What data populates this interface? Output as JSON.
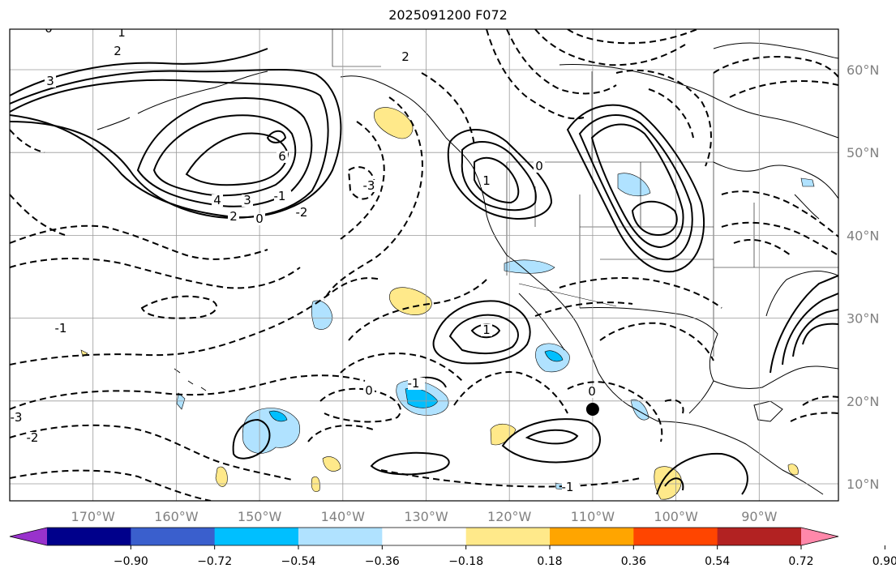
{
  "title": "2025091200 F072",
  "map": {
    "lon_ticks": [
      {
        "value": -170,
        "label": "170°W"
      },
      {
        "value": -160,
        "label": "160°W"
      },
      {
        "value": -150,
        "label": "150°W"
      },
      {
        "value": -140,
        "label": "140°W"
      },
      {
        "value": -130,
        "label": "130°W"
      },
      {
        "value": -120,
        "label": "120°W"
      },
      {
        "value": -110,
        "label": "110°W"
      },
      {
        "value": -100,
        "label": "100°W"
      },
      {
        "value": -90,
        "label": "90°W"
      }
    ],
    "lat_ticks": [
      {
        "value": 60,
        "label": "60°N"
      },
      {
        "value": 50,
        "label": "50°N"
      },
      {
        "value": 40,
        "label": "40°N"
      },
      {
        "value": 30,
        "label": "30°N"
      },
      {
        "value": 20,
        "label": "20°N"
      },
      {
        "value": 10,
        "label": "10°N"
      }
    ],
    "lon_range": [
      -180,
      -80
    ],
    "lat_range": [
      8,
      65
    ],
    "grid": true,
    "contour_labels": [
      "3",
      "2",
      "1",
      "0",
      "-1",
      "-2",
      "-3",
      "6",
      "4",
      "3",
      "2",
      "0",
      "-1",
      "-2",
      "-3",
      "2",
      "1",
      "0",
      "-1",
      "0",
      "1",
      "0",
      "-1"
    ],
    "marker": {
      "lon": -110,
      "lat": 19,
      "color": "#000000"
    }
  },
  "colorbar": {
    "colors": [
      "#9932cc",
      "#00008b",
      "#3a5fcd",
      "#00bfff",
      "#b0e2ff",
      "#ffffff",
      "#ffe98a",
      "#ffa500",
      "#ff4500",
      "#b22222",
      "#ff88aa"
    ],
    "tick_labels": [
      "−0.90",
      "−0.72",
      "−0.54",
      "−0.36",
      "−0.18",
      "0.18",
      "0.36",
      "0.54",
      "0.72",
      "0.90"
    ]
  },
  "chart_data": {
    "type": "heatmap",
    "title": "2025091200 F072",
    "xlabel": "",
    "ylabel": "",
    "xlim": [
      -180,
      -80
    ],
    "ylim": [
      8,
      65
    ],
    "color_levels": [
      -0.9,
      -0.72,
      -0.54,
      -0.36,
      -0.18,
      0.18,
      0.36,
      0.54,
      0.72,
      0.9
    ],
    "contour_levels": [
      -3,
      -2,
      -1,
      0,
      1,
      2,
      3,
      4,
      5,
      6
    ],
    "marker": {
      "lon": -110,
      "lat": 19
    }
  }
}
